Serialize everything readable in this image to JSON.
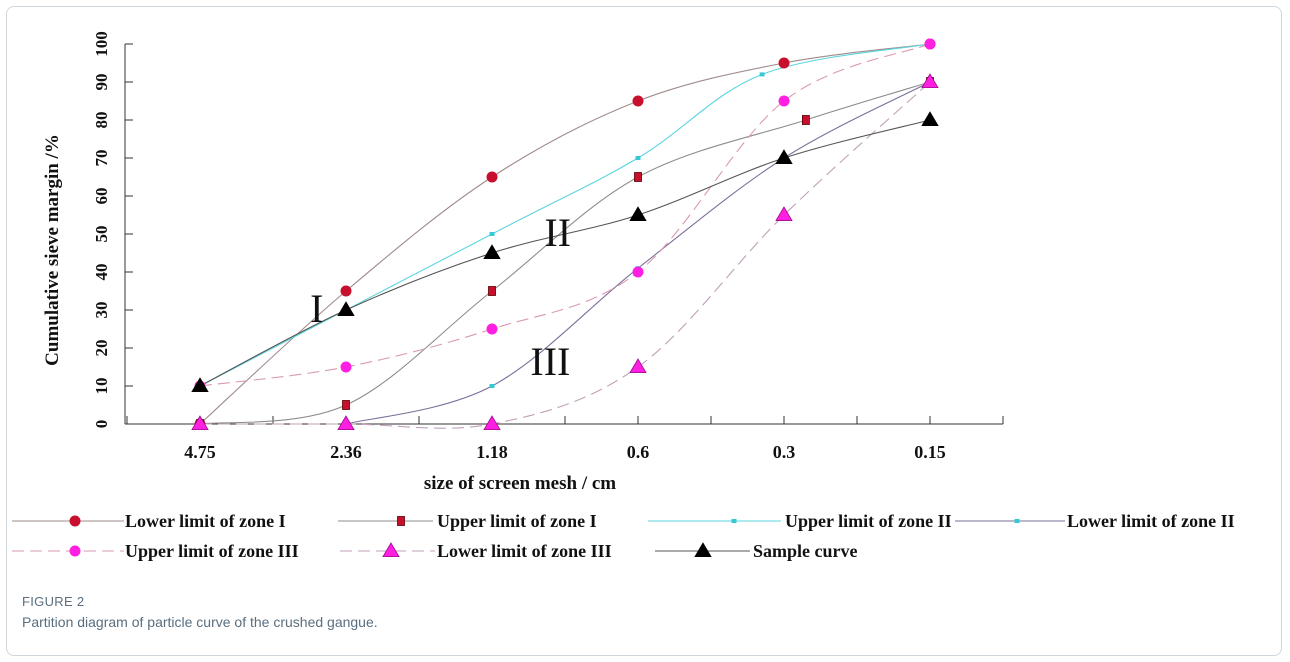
{
  "figure": {
    "label": "FIGURE 2",
    "caption": "Partition diagram of particle curve of the crushed gangue."
  },
  "chart_data": {
    "type": "line",
    "xlabel": "size of screen mesh / cm",
    "ylabel": "Cumulative sieve margin /%",
    "categories": [
      "4.75",
      "2.36",
      "1.18",
      "0.6",
      "0.3",
      "0.15"
    ],
    "yticks": [
      0,
      10,
      20,
      30,
      40,
      50,
      60,
      70,
      80,
      90,
      100
    ],
    "ylim": [
      0,
      100
    ],
    "grid": false,
    "legend_position": "bottom",
    "zone_labels": [
      "I",
      "II",
      "III"
    ],
    "series": [
      {
        "name": "Lower limit of zone I",
        "marker": "circle",
        "color": "#c8102e",
        "line_color": "#a08b8b",
        "dash": false,
        "values": [
          {
            "x": 0,
            "y": 0
          },
          {
            "x": 1,
            "y": 35
          },
          {
            "x": 2,
            "y": 65
          },
          {
            "x": 3,
            "y": 85
          },
          {
            "x": 4,
            "y": 95
          },
          {
            "x": 5,
            "y": 100
          }
        ]
      },
      {
        "name": "Upper limit of zone I",
        "marker": "square",
        "color": "#c8102e",
        "line_color": "#8c8c8c",
        "dash": false,
        "values": [
          {
            "x": 0,
            "y": 0
          },
          {
            "x": 1,
            "y": 5
          },
          {
            "x": 2,
            "y": 35
          },
          {
            "x": 3,
            "y": 65
          },
          {
            "x": 4.15,
            "y": 80
          },
          {
            "x": 5,
            "y": 90
          }
        ]
      },
      {
        "name": "Upper limit of zone II",
        "marker": "dot",
        "color": "#35c9d6",
        "line_color": "#5ad6e0",
        "dash": false,
        "values": [
          {
            "x": 0,
            "y": 10
          },
          {
            "x": 2,
            "y": 50
          },
          {
            "x": 3,
            "y": 70
          },
          {
            "x": 3.85,
            "y": 92
          },
          {
            "x": 5,
            "y": 100
          }
        ]
      },
      {
        "name": "Lower limit of zone II",
        "marker": "dot",
        "color": "#35c9d6",
        "line_color": "#7b6f9a",
        "dash": false,
        "values": [
          {
            "x": 1,
            "y": 0
          },
          {
            "x": 2,
            "y": 10
          },
          {
            "x": 3,
            "y": 41
          },
          {
            "x": 4,
            "y": 70
          },
          {
            "x": 5,
            "y": 90
          }
        ]
      },
      {
        "name": "Upper limit of zone III",
        "marker": "circle",
        "color": "#ff1fe0",
        "line_color": "#d99ab0",
        "dash": true,
        "values": [
          {
            "x": 0,
            "y": 10
          },
          {
            "x": 1,
            "y": 15
          },
          {
            "x": 2,
            "y": 25
          },
          {
            "x": 3,
            "y": 40
          },
          {
            "x": 4,
            "y": 85
          },
          {
            "x": 5,
            "y": 100
          }
        ]
      },
      {
        "name": "Lower limit of zone III",
        "marker": "triangle",
        "color": "#ff1fe0",
        "line_color": "#c0a0b8",
        "dash": true,
        "values": [
          {
            "x": 0,
            "y": 0
          },
          {
            "x": 1,
            "y": 0
          },
          {
            "x": 2,
            "y": 0
          },
          {
            "x": 3,
            "y": 15
          },
          {
            "x": 4,
            "y": 55
          },
          {
            "x": 5,
            "y": 90
          }
        ]
      },
      {
        "name": "Sample curve",
        "marker": "triangle",
        "color": "#000000",
        "line_color": "#555555",
        "dash": false,
        "values": [
          {
            "x": 0,
            "y": 10
          },
          {
            "x": 1,
            "y": 30
          },
          {
            "x": 2,
            "y": 45
          },
          {
            "x": 3,
            "y": 55
          },
          {
            "x": 4,
            "y": 70
          },
          {
            "x": 5,
            "y": 80
          }
        ]
      }
    ]
  }
}
